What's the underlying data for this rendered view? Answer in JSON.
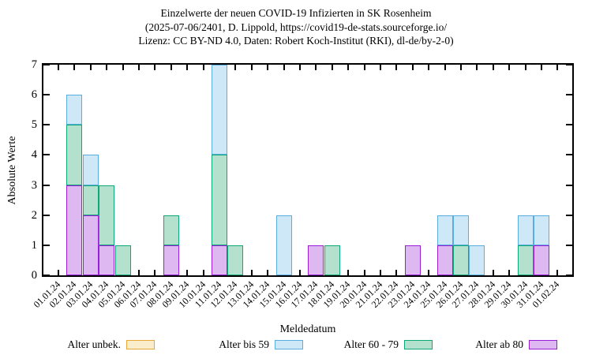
{
  "title": {
    "line1": "Einzelwerte der neuen COVID-19 Infizierten in SK Rosenheim",
    "line2": "(2025-07-06/2401, D. Lippold, https://covid19-de-stats.sourceforge.io/",
    "line3": "Lizenz: CC BY-ND 4.0, Daten: Robert Koch-Institut (RKI), dl-de/by-2-0)"
  },
  "chart_data": {
    "type": "bar",
    "stacked": true,
    "title": "Einzelwerte der neuen COVID-19 Infizierten in SK Rosenheim",
    "xlabel": "Meldedatum",
    "ylabel": "Absolute Werte",
    "ylim": [
      0,
      7
    ],
    "yticks": [
      0,
      1,
      2,
      3,
      4,
      5,
      6,
      7
    ],
    "grid": false,
    "legend_position": "below",
    "categories": [
      "01.01.24",
      "02.01.24",
      "03.01.24",
      "04.01.24",
      "05.01.24",
      "06.01.24",
      "07.01.24",
      "08.01.24",
      "09.01.24",
      "10.01.24",
      "11.01.24",
      "12.01.24",
      "13.01.24",
      "14.01.24",
      "15.01.24",
      "16.01.24",
      "17.01.24",
      "18.01.24",
      "19.01.24",
      "20.01.24",
      "21.01.24",
      "22.01.24",
      "23.01.24",
      "24.01.24",
      "25.01.24",
      "26.01.24",
      "27.01.24",
      "28.01.24",
      "29.01.24",
      "30.01.24",
      "31.01.24",
      "01.02.24"
    ],
    "series": [
      {
        "name": "Alter ab 80",
        "fill": "#deb8f0",
        "border": "#9b1fd9",
        "values": [
          0,
          3,
          2,
          1,
          0,
          0,
          0,
          1,
          0,
          0,
          1,
          0,
          0,
          0,
          0,
          0,
          1,
          0,
          0,
          0,
          0,
          0,
          1,
          0,
          1,
          0,
          0,
          0,
          0,
          0,
          1,
          0
        ]
      },
      {
        "name": "Alter 60 - 79",
        "fill": "#b3e1ce",
        "border": "#0ea878",
        "values": [
          0,
          2,
          1,
          2,
          1,
          0,
          0,
          1,
          0,
          0,
          3,
          1,
          0,
          0,
          0,
          0,
          0,
          1,
          0,
          0,
          0,
          0,
          0,
          0,
          0,
          1,
          0,
          0,
          0,
          1,
          0,
          0
        ]
      },
      {
        "name": "Alter bis 59",
        "fill": "#cfe8f8",
        "border": "#5aade0",
        "values": [
          0,
          1,
          1,
          0,
          0,
          0,
          0,
          0,
          0,
          0,
          3,
          0,
          0,
          0,
          2,
          0,
          0,
          0,
          0,
          0,
          0,
          0,
          0,
          0,
          1,
          1,
          1,
          0,
          0,
          1,
          1,
          0
        ]
      },
      {
        "name": "Alter unbek.",
        "fill": "#f9edcc",
        "border": "#eaa63a",
        "values": [
          0,
          0,
          0,
          0,
          0,
          0,
          0,
          0,
          0,
          0,
          0,
          0,
          0,
          0,
          0,
          0,
          0,
          0,
          0,
          0,
          0,
          0,
          0,
          0,
          0,
          0,
          0,
          0,
          0,
          0,
          0,
          0
        ]
      }
    ],
    "legend": [
      {
        "label": "Alter unbek.",
        "series": "Alter unbek."
      },
      {
        "label": "Alter bis 59",
        "series": "Alter bis 59"
      },
      {
        "label": "Alter 60 - 79",
        "series": "Alter 60 - 79"
      },
      {
        "label": "Alter ab 80",
        "series": "Alter ab 80"
      }
    ]
  }
}
